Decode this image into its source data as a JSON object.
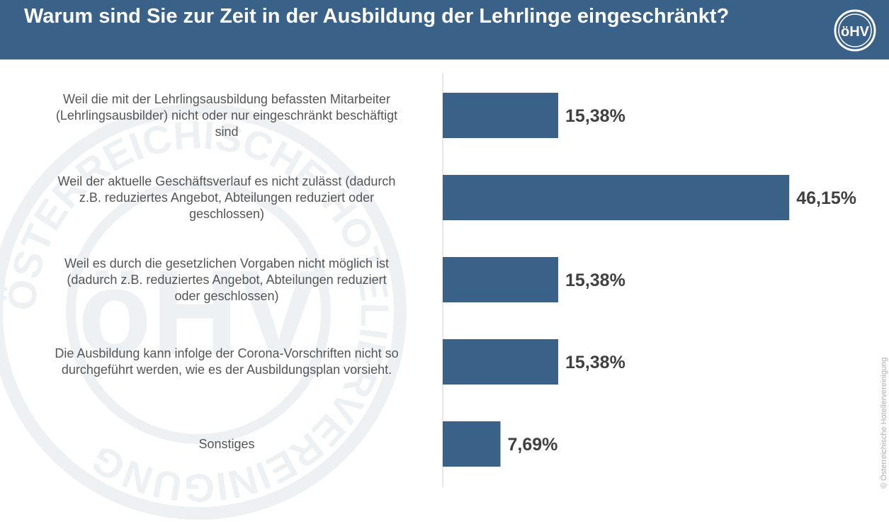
{
  "header": {
    "title": "Warum sind Sie zur Zeit in der Ausbildung der Lehrlinge eingeschränkt?",
    "logo_text": "öHV"
  },
  "copyright": "© Österreichische Hoteliervereinigung",
  "watermark": {
    "ring_text": "ÖSTERREICHISCHE HOTELIERVEREINIGUNG",
    "center_text": "öHV"
  },
  "colors": {
    "header": "#3a6188",
    "bar": "#3a6188",
    "label": "#555555",
    "value": "#404040"
  },
  "chart_data": {
    "type": "bar",
    "orientation": "horizontal",
    "title": "Warum sind Sie zur Zeit in der Ausbildung der Lehrlinge eingeschränkt?",
    "categories": [
      "Weil die mit der Lehrlingsausbildung befassten Mitarbeiter (Lehrlingsausbilder) nicht oder nur eingeschränkt beschäftigt sind",
      "Weil der aktuelle Geschäftsverlauf es nicht zulässt (dadurch z.B. reduziertes Angebot, Abteilungen reduziert oder geschlossen)",
      "Weil es durch die gesetzlichen Vorgaben nicht möglich ist (dadurch z.B. reduziertes Angebot, Abteilungen reduziert oder geschlossen)",
      "Die Ausbildung kann infolge der Corona-Vorschriften nicht so durchgeführt werden, wie es der Ausbildungsplan vorsieht.",
      "Sonstiges"
    ],
    "category_lines": [
      [
        "Weil die mit der Lehrlingsausbildung befassten Mitarbeiter",
        "(Lehrlingsausbilder) nicht oder nur eingeschränkt beschäftigt",
        "sind"
      ],
      [
        "Weil der aktuelle Geschäftsverlauf es nicht zulässt (dadurch",
        "z.B. reduziertes Angebot, Abteilungen reduziert oder",
        "geschlossen)"
      ],
      [
        "Weil es durch die gesetzlichen Vorgaben nicht möglich ist",
        "(dadurch z.B. reduziertes Angebot, Abteilungen reduziert",
        "oder geschlossen)"
      ],
      [
        "Die Ausbildung kann infolge der Corona-Vorschriften nicht so",
        "durchgeführt werden, wie es der Ausbildungsplan vorsieht."
      ],
      [
        "Sonstiges"
      ]
    ],
    "values": [
      15.38,
      46.15,
      15.38,
      15.38,
      7.69
    ],
    "value_labels": [
      "15,38%",
      "46,15%",
      "15,38%",
      "15,38%",
      "7,69%"
    ],
    "unit": "%",
    "xlim": [
      0,
      50
    ],
    "grid": false,
    "legend": "none"
  }
}
